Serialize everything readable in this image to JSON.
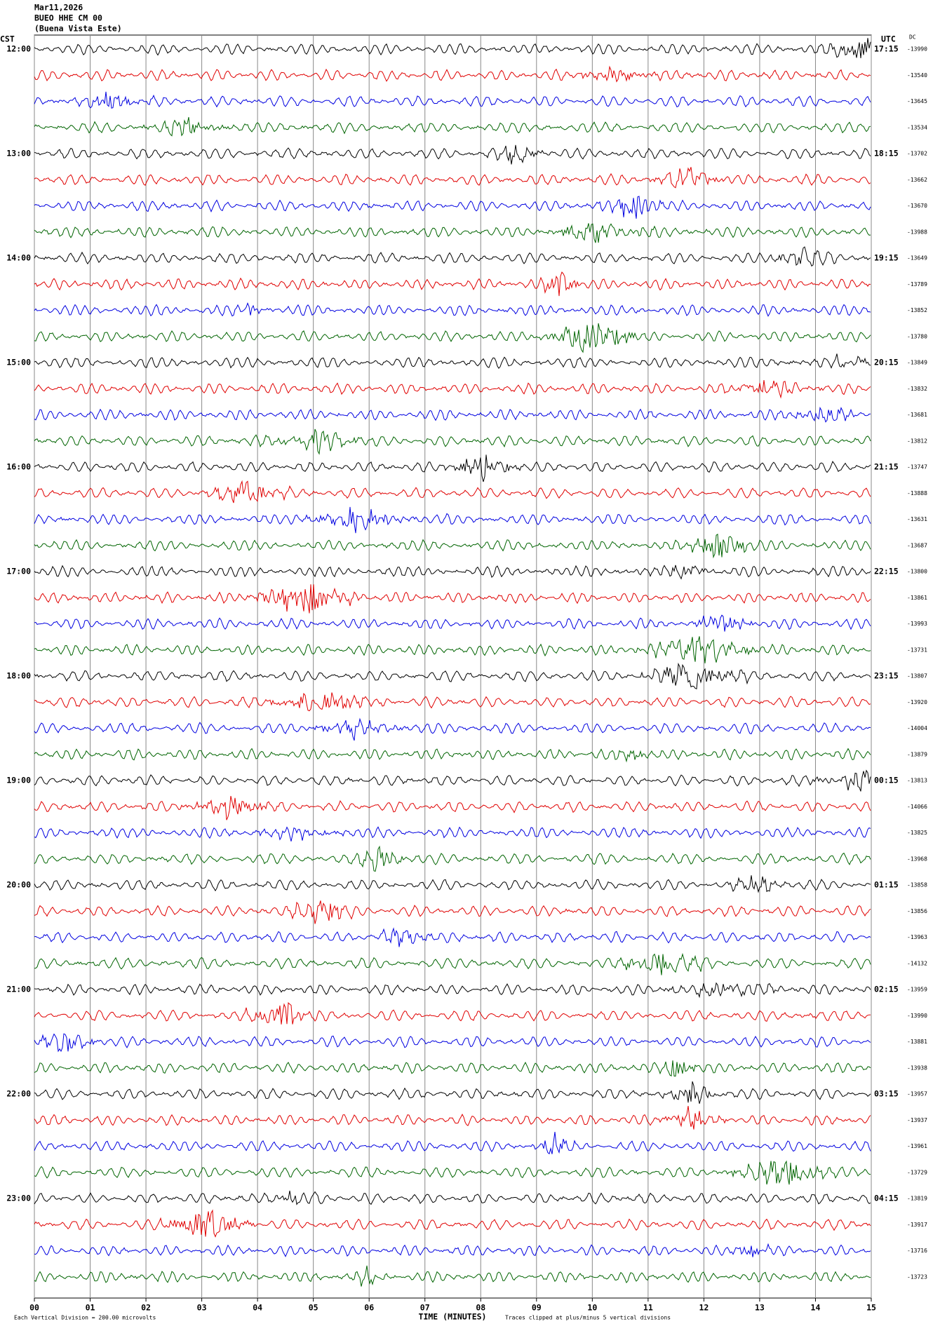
{
  "chart_data": {
    "type": "helicorder",
    "title": "Mar11,2026",
    "subtitle": "BUEO HHE CM 00",
    "location": "(Buena Vista Este)",
    "left_axis_label": "CST",
    "right_axis_label": "UTC",
    "dc_label": "DC",
    "x_label": "TIME (MINUTES)",
    "xlim": [
      0,
      15
    ],
    "xticks": [
      {
        "value": 0,
        "label": "00"
      },
      {
        "value": 1,
        "label": "01"
      },
      {
        "value": 2,
        "label": "02"
      },
      {
        "value": 3,
        "label": "03"
      },
      {
        "value": 4,
        "label": "04"
      },
      {
        "value": 5,
        "label": "05"
      },
      {
        "value": 6,
        "label": "06"
      },
      {
        "value": 7,
        "label": "07"
      },
      {
        "value": 8,
        "label": "08"
      },
      {
        "value": 9,
        "label": "09"
      },
      {
        "value": 10,
        "label": "10"
      },
      {
        "value": 11,
        "label": "11"
      },
      {
        "value": 12,
        "label": "12"
      },
      {
        "value": 13,
        "label": "13"
      },
      {
        "value": 14,
        "label": "14"
      },
      {
        "value": 15,
        "label": "15"
      }
    ],
    "grid": true,
    "colors": [
      "#000000",
      "#e00000",
      "#0000e0",
      "#006400"
    ],
    "row_labels_left": [
      "12:00",
      null,
      null,
      null,
      "13:00",
      null,
      null,
      null,
      "14:00",
      null,
      null,
      null,
      "15:00",
      null,
      null,
      null,
      "16:00",
      null,
      null,
      null,
      "17:00",
      null,
      null,
      null,
      "18:00",
      null,
      null,
      null,
      "19:00",
      null,
      null,
      null,
      "20:00",
      null,
      null,
      null,
      "21:00",
      null,
      null,
      null,
      "22:00",
      null,
      null,
      null,
      "23:00",
      null,
      null,
      null
    ],
    "row_labels_right": [
      "17:15",
      null,
      null,
      null,
      "18:15",
      null,
      null,
      null,
      "19:15",
      null,
      null,
      null,
      "20:15",
      null,
      null,
      null,
      "21:15",
      null,
      null,
      null,
      "22:15",
      null,
      null,
      null,
      "23:15",
      null,
      null,
      null,
      "00:15",
      null,
      null,
      null,
      "01:15",
      null,
      null,
      null,
      "02:15",
      null,
      null,
      null,
      "03:15",
      null,
      null,
      null,
      "04:15",
      null,
      null,
      null
    ],
    "dc_values": [
      -13990,
      -13540,
      -13645,
      -13534,
      -13702,
      -13662,
      -13670,
      -13988,
      -13649,
      -13789,
      -13852,
      -13780,
      -13849,
      -13832,
      -13681,
      -13812,
      -13747,
      -13888,
      -13631,
      -13687,
      -13800,
      -13861,
      -13993,
      -13731,
      -13807,
      -13920,
      -14004,
      -13879,
      -13813,
      -14066,
      -13825,
      -13968,
      -13858,
      -13856,
      -13963,
      -14132,
      -13959,
      -13990,
      -13881,
      -13938,
      -13957,
      -13937,
      -13961,
      -13729,
      -13819,
      -13917,
      -13716,
      -13723
    ],
    "footer_left": "Each Vertical Division = 200.00 microvolts",
    "footer_right": "Traces clipped at plus/minus 5 vertical divisions"
  }
}
